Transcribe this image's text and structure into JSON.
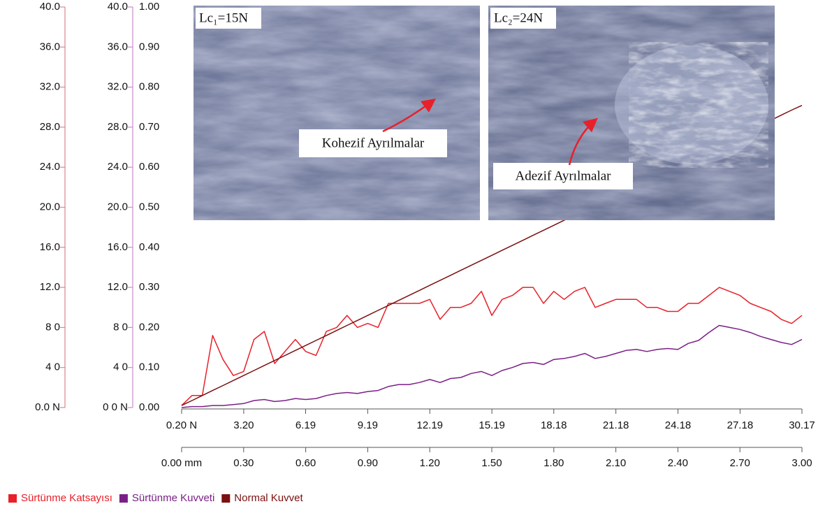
{
  "chart_data": {
    "type": "line",
    "x": [
      0,
      0.05,
      0.1,
      0.15,
      0.2,
      0.25,
      0.3,
      0.35,
      0.4,
      0.45,
      0.5,
      0.55,
      0.6,
      0.65,
      0.7,
      0.75,
      0.8,
      0.85,
      0.9,
      0.95,
      1.0,
      1.05,
      1.1,
      1.15,
      1.2,
      1.25,
      1.3,
      1.35,
      1.4,
      1.45,
      1.5,
      1.55,
      1.6,
      1.65,
      1.7,
      1.75,
      1.8,
      1.85,
      1.9,
      1.95,
      2.0,
      2.05,
      2.1,
      2.15,
      2.2,
      2.25,
      2.3,
      2.35,
      2.4,
      2.45,
      2.5,
      2.55,
      2.6,
      2.65,
      2.7,
      2.75,
      2.8,
      2.85,
      2.9,
      2.95,
      3.0
    ],
    "series": [
      {
        "name": "Sürtünme Katsayısı",
        "color": "#e8202a",
        "axis": "y3",
        "values": [
          0.005,
          0.03,
          0.03,
          0.18,
          0.12,
          0.08,
          0.09,
          0.17,
          0.19,
          0.11,
          0.14,
          0.17,
          0.14,
          0.13,
          0.19,
          0.2,
          0.23,
          0.2,
          0.21,
          0.2,
          0.26,
          0.26,
          0.26,
          0.26,
          0.27,
          0.22,
          0.25,
          0.25,
          0.26,
          0.29,
          0.23,
          0.27,
          0.28,
          0.3,
          0.3,
          0.26,
          0.29,
          0.27,
          0.29,
          0.3,
          0.25,
          0.26,
          0.27,
          0.27,
          0.27,
          0.25,
          0.25,
          0.24,
          0.24,
          0.26,
          0.26,
          0.28,
          0.3,
          0.29,
          0.28,
          0.26,
          0.25,
          0.24,
          0.22,
          0.21,
          0.23
        ]
      },
      {
        "name": "Sürtünme Kuvveti",
        "color": "#7b1f86",
        "axis": "y2",
        "values": [
          0,
          0.1,
          0.1,
          0.2,
          0.2,
          0.3,
          0.4,
          0.7,
          0.8,
          0.6,
          0.7,
          0.9,
          0.8,
          0.9,
          1.2,
          1.4,
          1.5,
          1.4,
          1.6,
          1.7,
          2.1,
          2.3,
          2.3,
          2.5,
          2.8,
          2.5,
          2.9,
          3.0,
          3.4,
          3.6,
          3.2,
          3.7,
          4.0,
          4.4,
          4.5,
          4.3,
          4.8,
          4.9,
          5.1,
          5.4,
          4.9,
          5.1,
          5.4,
          5.7,
          5.8,
          5.6,
          5.8,
          5.9,
          5.8,
          6.4,
          6.7,
          7.5,
          8.2,
          8.0,
          7.8,
          7.5,
          7.1,
          6.8,
          6.5,
          6.3,
          6.8
        ]
      },
      {
        "name": "Normal Kuvvet",
        "color": "#7a1010",
        "axis": "y",
        "values": [
          0.2,
          0.7,
          1.2,
          1.7,
          2.2,
          2.7,
          3.2,
          3.7,
          4.2,
          4.7,
          5.2,
          5.7,
          6.2,
          6.7,
          7.2,
          7.7,
          8.2,
          8.7,
          9.2,
          9.7,
          10.2,
          10.7,
          11.2,
          11.7,
          12.2,
          12.7,
          13.2,
          13.7,
          14.2,
          14.7,
          15.2,
          15.7,
          16.2,
          16.7,
          17.2,
          17.7,
          18.2,
          18.7,
          19.2,
          19.7,
          20.2,
          20.7,
          21.2,
          21.7,
          22.2,
          22.7,
          23.2,
          23.7,
          24.2,
          24.7,
          25.2,
          25.7,
          26.2,
          26.7,
          27.2,
          27.7,
          28.2,
          28.7,
          29.2,
          29.7,
          30.17
        ]
      }
    ],
    "xlim": [
      0,
      3
    ],
    "xticks": [
      {
        "value": 0,
        "label": "0.00 mm"
      },
      {
        "value": 0.3,
        "label": "0.30"
      },
      {
        "value": 0.6,
        "label": "0.60"
      },
      {
        "value": 0.9,
        "label": "0.90"
      },
      {
        "value": 1.2,
        "label": "1.20"
      },
      {
        "value": 1.5,
        "label": "1.50"
      },
      {
        "value": 1.8,
        "label": "1.80"
      },
      {
        "value": 2.1,
        "label": "2.10"
      },
      {
        "value": 2.4,
        "label": "2.40"
      },
      {
        "value": 2.7,
        "label": "2.70"
      },
      {
        "value": 3,
        "label": "3.00"
      }
    ],
    "x2lim": [
      0.2,
      30.17
    ],
    "x2ticks": [
      {
        "value": 0.2,
        "label": "0.20 N"
      },
      {
        "value": 3.2,
        "label": "3.20"
      },
      {
        "value": 6.19,
        "label": "6.19"
      },
      {
        "value": 9.19,
        "label": "9.19"
      },
      {
        "value": 12.19,
        "label": "12.19"
      },
      {
        "value": 15.19,
        "label": "15.19"
      },
      {
        "value": 18.18,
        "label": "18.18"
      },
      {
        "value": 21.18,
        "label": "21.18"
      },
      {
        "value": 24.18,
        "label": "24.18"
      },
      {
        "value": 27.18,
        "label": "27.18"
      },
      {
        "value": 30.17,
        "label": "30.17"
      }
    ],
    "ylim": [
      0,
      40
    ],
    "yticks": [
      {
        "value": 0,
        "label": "0.0 N"
      },
      {
        "value": 4,
        "label": "4 0"
      },
      {
        "value": 8,
        "label": "8 0"
      },
      {
        "value": 12,
        "label": "12.0"
      },
      {
        "value": 16,
        "label": "16.0"
      },
      {
        "value": 20,
        "label": "20.0"
      },
      {
        "value": 24,
        "label": "24.0"
      },
      {
        "value": 28,
        "label": "28.0"
      },
      {
        "value": 32,
        "label": "32.0"
      },
      {
        "value": 36,
        "label": "36.0"
      },
      {
        "value": 40,
        "label": "40.0"
      }
    ],
    "y2lim": [
      0,
      40
    ],
    "y2ticks": [
      {
        "value": 0,
        "label": "0 0 N"
      },
      {
        "value": 4,
        "label": "4 0"
      },
      {
        "value": 8,
        "label": "8 0"
      },
      {
        "value": 12,
        "label": "12.0"
      },
      {
        "value": 16,
        "label": "16.0"
      },
      {
        "value": 20,
        "label": "20.0"
      },
      {
        "value": 24,
        "label": "24.0"
      },
      {
        "value": 28,
        "label": "28.0"
      },
      {
        "value": 32,
        "label": "32.0"
      },
      {
        "value": 36,
        "label": "36.0"
      },
      {
        "value": 40,
        "label": "40.0"
      }
    ],
    "y3lim": [
      0,
      1
    ],
    "y3ticks": [
      {
        "value": 0,
        "label": "0.00"
      },
      {
        "value": 0.1,
        "label": "0.10"
      },
      {
        "value": 0.2,
        "label": "0.20"
      },
      {
        "value": 0.3,
        "label": "0.30"
      },
      {
        "value": 0.4,
        "label": "0.40"
      },
      {
        "value": 0.5,
        "label": "0.50"
      },
      {
        "value": 0.6,
        "label": "0.60"
      },
      {
        "value": 0.7,
        "label": "0.70"
      },
      {
        "value": 0.8,
        "label": "0.80"
      },
      {
        "value": 0.9,
        "label": "0.90"
      },
      {
        "value": 1,
        "label": "1.00"
      }
    ],
    "legend": "bottom-left",
    "insets": [
      {
        "label": "Lc₁=15N",
        "annotation": "Kohezif Ayrılmalar"
      },
      {
        "label": "Lc₂=24N",
        "annotation": "Adezif Ayrılmalar"
      }
    ]
  }
}
